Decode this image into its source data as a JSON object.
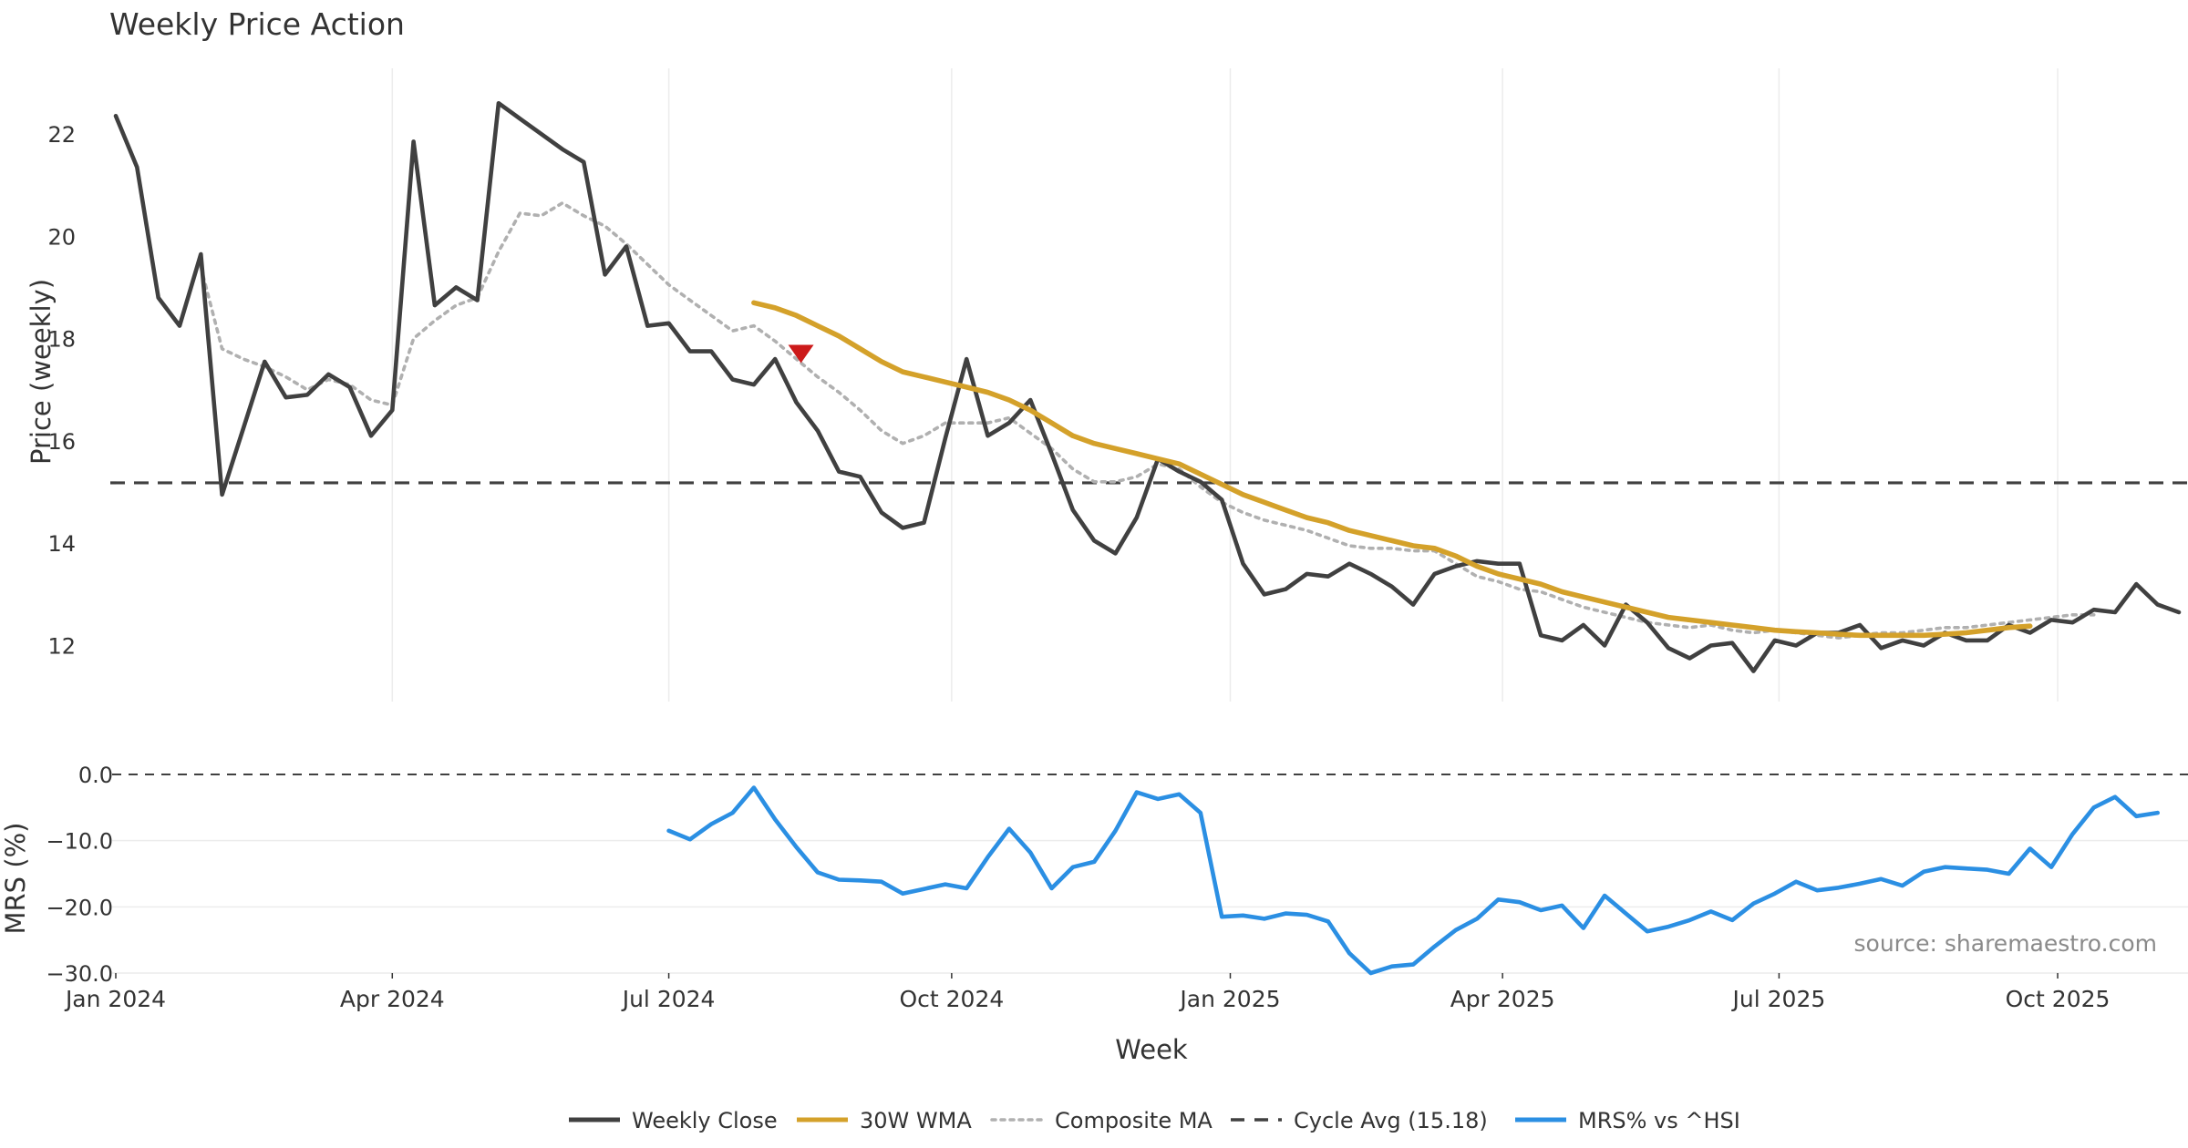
{
  "chart_data": [
    {
      "type": "line",
      "title": "Weekly Price Action",
      "ylabel": "Price (weekly)",
      "ylim": [
        11.0,
        23.0
      ],
      "yticks": [
        12,
        14,
        16,
        18,
        20,
        22
      ],
      "xlabel": "Week",
      "xticks": [
        "Jan 2024",
        "Apr 2024",
        "Jul 2024",
        "Oct 2024",
        "Jan 2025",
        "Apr 2025",
        "Jul 2025",
        "Oct 2025"
      ],
      "x_start_week": 0,
      "cycle_avg": 15.18,
      "marker": {
        "week": 32,
        "value": 17.7,
        "shape": "triangle-down",
        "color": "#cc1a1a"
      },
      "series": [
        {
          "name": "Weekly Close",
          "color": "#404040",
          "style": "solid",
          "start_week": 0,
          "values": [
            22.35,
            21.35,
            18.8,
            18.25,
            19.65,
            14.95,
            16.25,
            17.55,
            16.85,
            16.9,
            17.3,
            17.05,
            16.1,
            16.6,
            21.85,
            18.65,
            19.0,
            18.75,
            22.6,
            22.3,
            22.0,
            21.7,
            21.45,
            19.25,
            19.8,
            18.25,
            18.3,
            17.75,
            17.75,
            17.2,
            17.1,
            17.6,
            16.75,
            16.2,
            15.4,
            15.3,
            14.6,
            14.3,
            14.4,
            16.05,
            17.6,
            16.1,
            16.35,
            16.8,
            15.75,
            14.65,
            14.05,
            13.8,
            14.5,
            15.65,
            15.4,
            15.2,
            14.85,
            13.6,
            13.0,
            13.1,
            13.4,
            13.35,
            13.6,
            13.4,
            13.15,
            12.8,
            13.4,
            13.55,
            13.65,
            13.6,
            13.6,
            12.2,
            12.1,
            12.4,
            12.0,
            12.8,
            12.45,
            11.95,
            11.75,
            12.0,
            12.05,
            11.5,
            12.1,
            12.0,
            12.25,
            12.25,
            12.4,
            11.95,
            12.1,
            12.0,
            12.25,
            12.1,
            12.1,
            12.4,
            12.25,
            12.5,
            12.45,
            12.7,
            12.65,
            13.2,
            12.8,
            12.65
          ]
        },
        {
          "name": "30W WMA",
          "color": "#d4a12a",
          "style": "solid",
          "start_week": 30,
          "values": [
            18.7,
            18.6,
            18.45,
            18.25,
            18.05,
            17.8,
            17.55,
            17.35,
            17.25,
            17.15,
            17.05,
            16.95,
            16.8,
            16.6,
            16.35,
            16.1,
            15.95,
            15.85,
            15.75,
            15.65,
            15.55,
            15.35,
            15.15,
            14.95,
            14.8,
            14.65,
            14.5,
            14.4,
            14.25,
            14.15,
            14.05,
            13.95,
            13.9,
            13.75,
            13.55,
            13.4,
            13.3,
            13.2,
            13.05,
            12.95,
            12.85,
            12.75,
            12.65,
            12.55,
            12.5,
            12.45,
            12.4,
            12.35,
            12.3,
            12.27,
            12.25,
            12.22,
            12.2,
            12.2,
            12.2,
            12.2,
            12.22,
            12.25,
            12.3,
            12.35,
            12.38
          ]
        },
        {
          "name": "Composite MA",
          "color": "#b0b0b0",
          "style": "dotted",
          "start_week": 4,
          "values": [
            19.4,
            17.8,
            17.6,
            17.45,
            17.25,
            17.0,
            17.2,
            17.1,
            16.8,
            16.7,
            18.0,
            18.35,
            18.65,
            18.8,
            19.7,
            20.45,
            20.4,
            20.65,
            20.4,
            20.2,
            19.85,
            19.45,
            19.05,
            18.75,
            18.45,
            18.15,
            18.25,
            17.95,
            17.6,
            17.25,
            16.95,
            16.6,
            16.2,
            15.95,
            16.1,
            16.35,
            16.35,
            16.35,
            16.45,
            16.15,
            15.85,
            15.45,
            15.2,
            15.2,
            15.3,
            15.55,
            15.45,
            15.1,
            14.8,
            14.6,
            14.45,
            14.35,
            14.25,
            14.1,
            13.95,
            13.9,
            13.9,
            13.85,
            13.85,
            13.6,
            13.35,
            13.25,
            13.1,
            13.05,
            12.9,
            12.75,
            12.65,
            12.55,
            12.45,
            12.4,
            12.35,
            12.4,
            12.3,
            12.25,
            12.3,
            12.25,
            12.2,
            12.15,
            12.2,
            12.25,
            12.25,
            12.3,
            12.35,
            12.35,
            12.4,
            12.45,
            12.5,
            12.55,
            12.6,
            12.6
          ]
        },
        {
          "name": "Cycle Avg (15.18)",
          "color": "#404040",
          "style": "dashed",
          "constant": 15.18
        }
      ]
    },
    {
      "type": "line",
      "ylabel": "MRS (%)",
      "ylim": [
        -30.5,
        1.5
      ],
      "yticks": [
        0.0,
        -10.0,
        -20.0,
        -30.0
      ],
      "ytick_labels": [
        "0.0",
        "−10.0",
        "−20.0",
        "−30.0"
      ],
      "series": [
        {
          "name": "MRS% vs ^HSI",
          "color": "#2b8fe3",
          "style": "solid",
          "start_week": 26,
          "values": [
            -8.5,
            -9.8,
            -7.5,
            -5.8,
            -2.0,
            -6.8,
            -11.0,
            -14.8,
            -15.9,
            -16.0,
            -16.2,
            -18.0,
            -17.3,
            -16.6,
            -17.2,
            -12.5,
            -8.2,
            -11.8,
            -17.2,
            -14.0,
            -13.2,
            -8.5,
            -2.7,
            -3.7,
            -3.0,
            -5.8,
            -21.5,
            -21.3,
            -21.8,
            -21.0,
            -21.2,
            -22.2,
            -27.0,
            -30.0,
            -29.0,
            -28.7,
            -26.0,
            -23.5,
            -21.8,
            -18.9,
            -19.3,
            -20.5,
            -19.8,
            -23.2,
            -18.3,
            -21.0,
            -23.7,
            -23.0,
            -22.0,
            -20.7,
            -22.0,
            -19.5,
            -18.0,
            -16.2,
            -17.5,
            -17.1,
            -16.5,
            -15.8,
            -16.8,
            -14.7,
            -14.0,
            -14.2,
            -14.4,
            -15.0,
            -11.2,
            -14.0,
            -9.0,
            -5.0,
            -3.4,
            -6.3,
            -5.8
          ]
        }
      ],
      "annotation": "source: sharemaestro.com"
    }
  ],
  "legend": [
    {
      "label": "Weekly Close",
      "color": "#404040",
      "style": "solid"
    },
    {
      "label": "30W WMA",
      "color": "#d4a12a",
      "style": "solid"
    },
    {
      "label": "Composite MA",
      "color": "#b0b0b0",
      "style": "dotted"
    },
    {
      "label": "Cycle Avg (15.18)",
      "color": "#404040",
      "style": "dashed"
    },
    {
      "label": "MRS% vs ^HSI",
      "color": "#2b8fe3",
      "style": "solid"
    }
  ]
}
